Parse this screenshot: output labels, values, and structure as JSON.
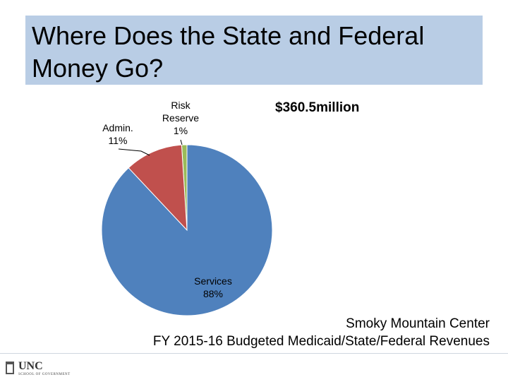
{
  "slide": {
    "title_line1": "Where Does the State and Federal",
    "title_line2": "Money Go?",
    "total": "$360.5million",
    "source_line1": "Smoky Mountain Center",
    "source_line2": "FY 2015-16 Budgeted Medicaid/State/Federal Revenues",
    "logo_name": "UNC",
    "logo_sub": "SCHOOL OF GOVERNMENT"
  },
  "chart_data": {
    "type": "pie",
    "start_angle_deg": 90,
    "direction": "counterclockwise",
    "slices": [
      {
        "label": "Risk Reserve",
        "value": 1,
        "pct_text": "1%",
        "color": "#9bbb59"
      },
      {
        "label": "Admin.",
        "value": 11,
        "pct_text": "11%",
        "color": "#c0504d"
      },
      {
        "label": "Services",
        "value": 88,
        "pct_text": "88%",
        "color": "#4f81bd"
      }
    ]
  }
}
